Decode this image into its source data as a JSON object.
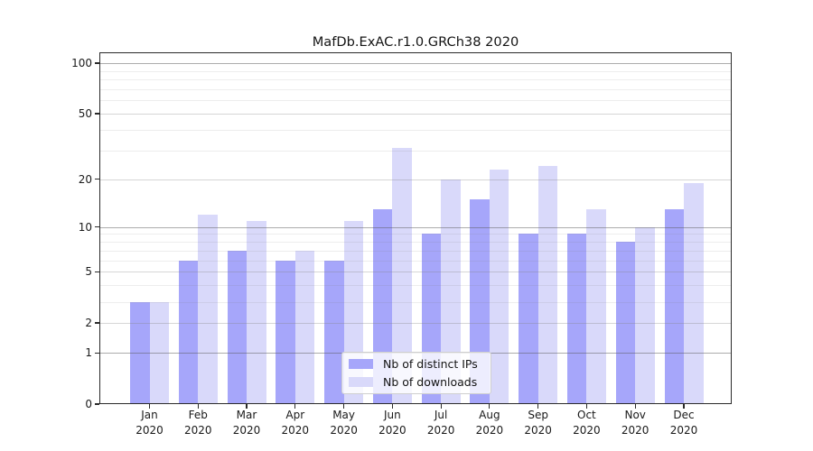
{
  "chart_title": "MafDb.ExAC.r1.0.GRCh38 2020",
  "chart_data": {
    "type": "bar",
    "title": "MafDb.ExAC.r1.0.GRCh38 2020",
    "categories": [
      "Jan",
      "Feb",
      "Mar",
      "Apr",
      "May",
      "Jun",
      "Jul",
      "Aug",
      "Sep",
      "Oct",
      "Nov",
      "Dec"
    ],
    "category_year": "2020",
    "series": [
      {
        "name": "Nb of distinct IPs",
        "color": "#a6a6fa",
        "values": [
          3,
          6,
          7,
          6,
          6,
          13,
          9,
          15,
          9,
          9,
          8,
          13
        ]
      },
      {
        "name": "Nb of downloads",
        "color": "#d9d9fa",
        "values": [
          3,
          12,
          11,
          7,
          11,
          31,
          20,
          23,
          24,
          13,
          10,
          19
        ]
      }
    ],
    "yscale": "log1p",
    "ylim": [
      0,
      115
    ],
    "y_ticks_labeled": [
      0,
      1,
      2,
      5,
      10,
      20,
      50,
      100
    ],
    "y_ticks_minor": [
      3,
      4,
      6,
      7,
      8,
      9,
      30,
      40,
      60,
      70,
      80,
      90
    ],
    "grid": true,
    "legend_position": "inside-bottom-center",
    "xlabel": "",
    "ylabel": ""
  }
}
